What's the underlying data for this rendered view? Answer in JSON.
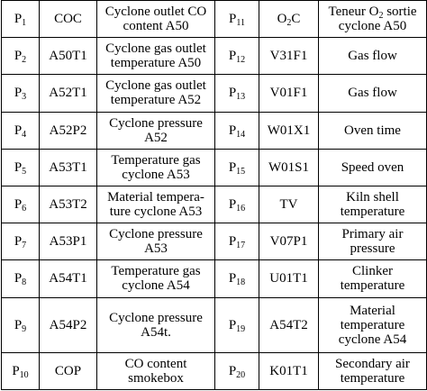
{
  "rows": [
    {
      "p1": "P",
      "s1": "1",
      "t1": "COC",
      "d1": "Cyclone outlet CO content A50",
      "p2": "P",
      "s2": "11",
      "t2a": "O",
      "t2s": "2",
      "t2b": "C",
      "d2a": "Teneur O",
      "d2s": "2",
      "d2b": " sortie cyclone A50"
    },
    {
      "p1": "P",
      "s1": "2",
      "t1": "A50T1",
      "d1": "Cyclone gas outlet temperature A50",
      "p2": "P",
      "s2": "12",
      "t2": "V31F1",
      "d2": "Gas flow"
    },
    {
      "p1": "P",
      "s1": "3",
      "t1": "A52T1",
      "d1": "Cyclone gas outlet temperature A52",
      "p2": "P",
      "s2": "13",
      "t2": "V01F1",
      "d2": "Gas flow"
    },
    {
      "p1": "P",
      "s1": "4",
      "t1": "A52P2",
      "d1": "Cyclone pressure A52",
      "p2": "P",
      "s2": "14",
      "t2": "W01X1",
      "d2": "Oven time"
    },
    {
      "p1": "P",
      "s1": "5",
      "t1": "A53T1",
      "d1": "Temperature gas cyclone A53",
      "p2": "P",
      "s2": "15",
      "t2": "W01S1",
      "d2": "Speed oven"
    },
    {
      "p1": "P",
      "s1": "6",
      "t1": "A53T2",
      "d1": "Material tempera-ture cyclone A53",
      "p2": "P",
      "s2": "16",
      "t2": "TV",
      "d2": "Kiln shell temperature"
    },
    {
      "p1": "P",
      "s1": "7",
      "t1": "A53P1",
      "d1": "Cyclone pressure A53",
      "p2": "P",
      "s2": "17",
      "t2": "V07P1",
      "d2": "Primary air pressure"
    },
    {
      "p1": "P",
      "s1": "8",
      "t1": "A54T1",
      "d1": "Temperature gas cyclone A54",
      "p2": "P",
      "s2": "18",
      "t2": "U01T1",
      "d2": "Clinker temperature"
    },
    {
      "p1": "P",
      "s1": "9",
      "t1": "A54P2",
      "d1": "Cyclone pressure A54t.",
      "p2": "P",
      "s2": "19",
      "t2": "A54T2",
      "d2": "Material temperature cyclone A54"
    },
    {
      "p1": "P",
      "s1": "10",
      "t1": "COP",
      "d1": "CO content smokebox",
      "p2": "P",
      "s2": "20",
      "t2": "K01T1",
      "d2": "Secondary air temperature"
    }
  ]
}
